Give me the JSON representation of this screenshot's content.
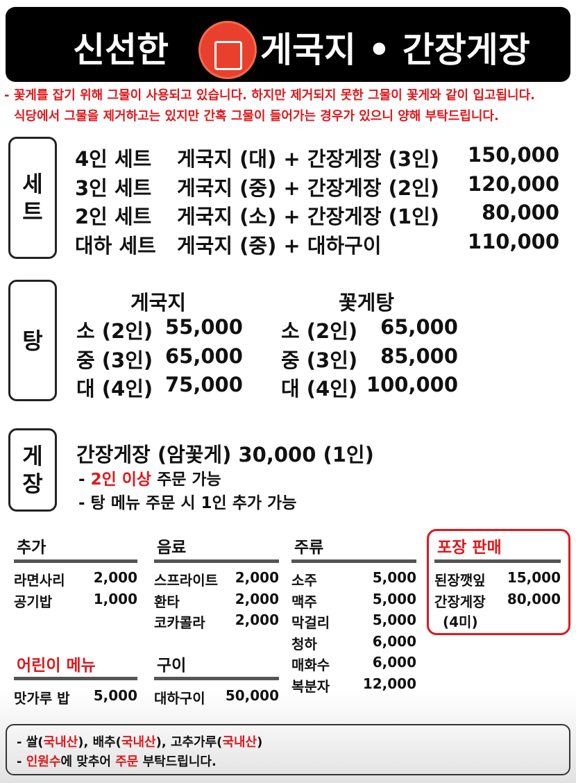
{
  "header": {
    "title_left": "신선한",
    "title_right": "게국지 • 간장게장",
    "logo_icon": "crab-logo"
  },
  "notice": [
    "- 꽃게를 잡기 위해 그물이 사용되고 있습니다. 하지만 제거되지 못한 그물이 꽃게와 같이 입고됩니다.",
    "식당에서 그물을 제거하고는 있지만 간혹 그물이 들어가는 경우가 있으니 양해 부탁드립니다."
  ],
  "set": {
    "label": [
      "세",
      "트"
    ],
    "items": [
      {
        "name": "4인 세트",
        "desc": "게국지 (대) + 간장게장 (3인)",
        "price": "150,000"
      },
      {
        "name": "3인 세트",
        "desc": "게국지 (중) + 간장게장 (2인)",
        "price": "120,000"
      },
      {
        "name": "2인 세트",
        "desc": "게국지 (소) + 간장게장 (1인)",
        "price": "80,000"
      },
      {
        "name": "대하 세트",
        "desc": "게국지 (중) + 대하구이",
        "price": "110,000"
      }
    ]
  },
  "tang": {
    "label": "탕",
    "columns": [
      {
        "title": "게국지",
        "items": [
          {
            "size": "소 (2인)",
            "price": "55,000"
          },
          {
            "size": "중 (3인)",
            "price": "65,000"
          },
          {
            "size": "대 (4인)",
            "price": "75,000"
          }
        ]
      },
      {
        "title": "꽃게탕",
        "items": [
          {
            "size": "소 (2인)",
            "price": "65,000"
          },
          {
            "size": "중 (3인)",
            "price": "85,000"
          },
          {
            "size": "대 (4인)",
            "price": "100,000"
          }
        ]
      }
    ]
  },
  "gejang": {
    "label": [
      "게",
      "장"
    ],
    "main": "간장게장 (암꽃게)  30,000  (1인)",
    "note1_prefix": "- ",
    "note1_red": "2인 이상",
    "note1_suffix": " 주문 가능",
    "note2": "- 탕 메뉴 주문 시 1인 추가 가능"
  },
  "extra": {
    "title": "추가",
    "items": [
      {
        "name": "라면사리",
        "price": "2,000"
      },
      {
        "name": "공기밥",
        "price": "1,000"
      }
    ]
  },
  "drinks": {
    "title": "음료",
    "items": [
      {
        "name": "스프라이트",
        "price": "2,000"
      },
      {
        "name": "환타",
        "price": "2,000"
      },
      {
        "name": "코카콜라",
        "price": "2,000"
      }
    ]
  },
  "liquor": {
    "title": "주류",
    "items": [
      {
        "name": "소주",
        "price": "5,000"
      },
      {
        "name": "맥주",
        "price": "5,000"
      },
      {
        "name": "막걸리",
        "price": "5,000"
      },
      {
        "name": "청하",
        "price": "6,000"
      },
      {
        "name": "매화수",
        "price": "6,000"
      },
      {
        "name": "복분자",
        "price": "12,000"
      }
    ]
  },
  "takeout": {
    "title": "포장 판매",
    "items": [
      {
        "name": "된장깻잎",
        "price": "15,000"
      },
      {
        "name": "간장게장",
        "price": "80,000"
      }
    ],
    "note": "(4미)"
  },
  "kids": {
    "title": "어린이 메뉴",
    "items": [
      {
        "name": "맛가루 밥",
        "price": "5,000"
      }
    ]
  },
  "grill": {
    "title": "구이",
    "items": [
      {
        "name": "대하구이",
        "price": "50,000"
      }
    ]
  },
  "footer": {
    "line1": [
      "- ",
      "쌀(",
      "국내산",
      "), 배추(",
      "국내산",
      "), 고추가루(",
      "국내산",
      ")"
    ],
    "line2": [
      "- ",
      "인원수",
      "에 맞추어 ",
      "주문",
      " 부탁드립니다."
    ]
  },
  "colors": {
    "accent": "#e0171b",
    "header_bg": "#000000",
    "rule": "#555555"
  }
}
